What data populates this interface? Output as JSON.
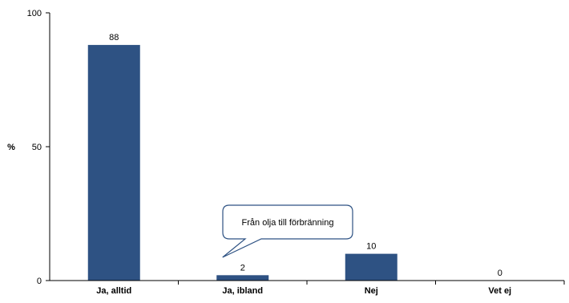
{
  "chart_data": {
    "type": "bar",
    "title": "",
    "xlabel": "",
    "ylabel": "%",
    "ylim": [
      0,
      100
    ],
    "yticks": [
      0,
      50,
      100
    ],
    "grid": false,
    "legend": "none",
    "categories": [
      "Ja, alltid",
      "Ja, ibland",
      "Nej",
      "Vet ej"
    ],
    "values": [
      88,
      2,
      10,
      0
    ],
    "data_labels": [
      "88",
      "2",
      "10",
      "0"
    ],
    "bar_color": "#2e5283",
    "axis_color": "#000000",
    "annotations": [
      {
        "text": "Från olja till förbränning",
        "points_to_category": "Ja, ibland"
      }
    ]
  }
}
